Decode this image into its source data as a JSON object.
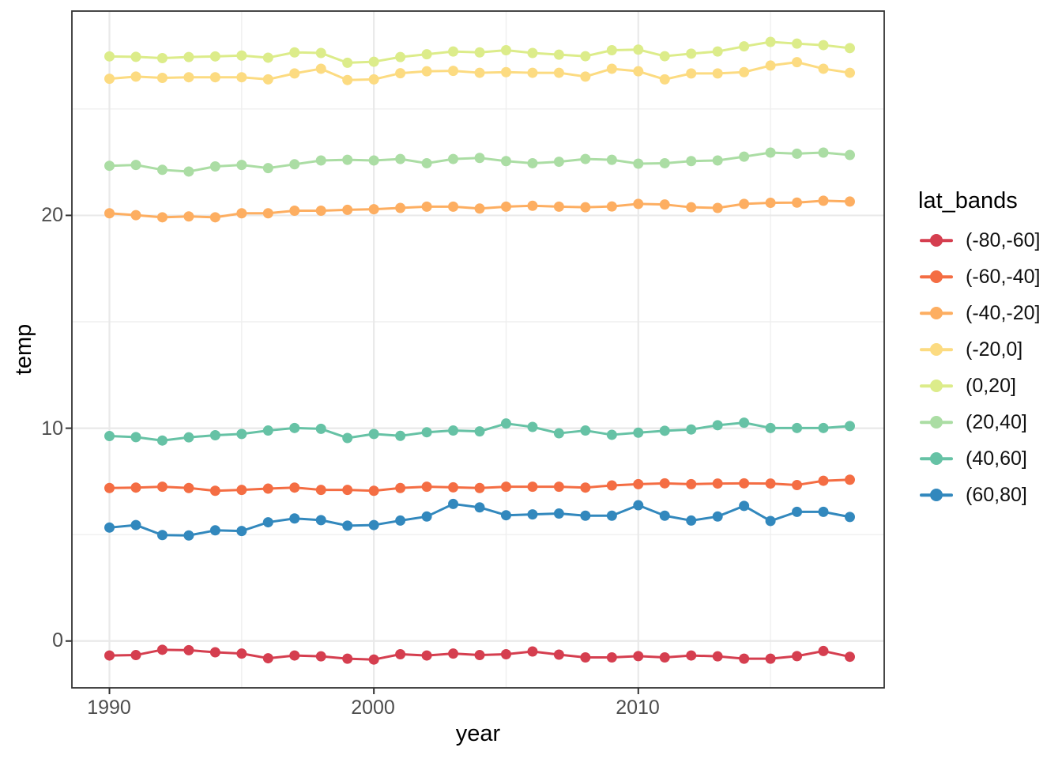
{
  "chart_data": {
    "type": "line",
    "title": "",
    "xlabel": "year",
    "ylabel": "temp",
    "legend_title": "lat_bands",
    "legend_position": "right",
    "grid": true,
    "marker": "circle",
    "xlim": [
      1988.58,
      2019.3
    ],
    "ylim": [
      -2.2,
      29.6
    ],
    "x_ticks": [
      1990,
      2000,
      2010
    ],
    "x_tick_labels": [
      "1990",
      "2000",
      "2010"
    ],
    "x_minor_ticks": [
      1995,
      2005,
      2015
    ],
    "y_ticks": [
      0,
      10,
      20
    ],
    "y_tick_labels": [
      "0",
      "10",
      "20"
    ],
    "y_minor_ticks": [
      5,
      15,
      25
    ],
    "x": [
      1990,
      1991,
      1992,
      1993,
      1994,
      1995,
      1996,
      1997,
      1998,
      1999,
      2000,
      2001,
      2002,
      2003,
      2004,
      2005,
      2006,
      2007,
      2008,
      2009,
      2010,
      2011,
      2012,
      2013,
      2014,
      2015,
      2016,
      2017,
      2018
    ],
    "series": [
      {
        "name": "(-80,-60]",
        "color": "#d53e4f",
        "values": [
          -0.68,
          -0.66,
          -0.41,
          -0.43,
          -0.53,
          -0.59,
          -0.81,
          -0.68,
          -0.72,
          -0.83,
          -0.87,
          -0.62,
          -0.68,
          -0.59,
          -0.66,
          -0.62,
          -0.49,
          -0.64,
          -0.77,
          -0.77,
          -0.71,
          -0.77,
          -0.68,
          -0.72,
          -0.83,
          -0.83,
          -0.71,
          -0.47,
          -0.74
        ]
      },
      {
        "name": "(-60,-40]",
        "color": "#f46d43",
        "values": [
          7.19,
          7.21,
          7.25,
          7.19,
          7.06,
          7.1,
          7.16,
          7.21,
          7.1,
          7.1,
          7.06,
          7.19,
          7.25,
          7.22,
          7.19,
          7.25,
          7.25,
          7.25,
          7.21,
          7.31,
          7.37,
          7.41,
          7.37,
          7.4,
          7.41,
          7.4,
          7.33,
          7.53,
          7.58
        ]
      },
      {
        "name": "(-40,-20]",
        "color": "#fdae61",
        "values": [
          20.1,
          20.01,
          19.91,
          19.95,
          19.91,
          20.1,
          20.1,
          20.22,
          20.22,
          20.26,
          20.29,
          20.35,
          20.41,
          20.41,
          20.32,
          20.41,
          20.45,
          20.41,
          20.38,
          20.42,
          20.54,
          20.51,
          20.38,
          20.35,
          20.54,
          20.59,
          20.6,
          20.69,
          20.65
        ]
      },
      {
        "name": "(-20,0]",
        "color": "#fcdb81",
        "values": [
          26.42,
          26.52,
          26.46,
          26.49,
          26.49,
          26.49,
          26.39,
          26.67,
          26.89,
          26.36,
          26.39,
          26.68,
          26.77,
          26.79,
          26.7,
          26.73,
          26.7,
          26.7,
          26.52,
          26.89,
          26.77,
          26.39,
          26.67,
          26.67,
          26.73,
          27.04,
          27.2,
          26.89,
          26.7
        ]
      },
      {
        "name": "(0,20]",
        "color": "#dcec8a",
        "values": [
          27.47,
          27.45,
          27.39,
          27.44,
          27.47,
          27.51,
          27.41,
          27.66,
          27.63,
          27.17,
          27.22,
          27.44,
          27.57,
          27.7,
          27.66,
          27.76,
          27.63,
          27.55,
          27.48,
          27.76,
          27.79,
          27.48,
          27.6,
          27.7,
          27.94,
          28.15,
          28.07,
          28.0,
          27.86
        ]
      },
      {
        "name": "(20,40]",
        "color": "#abdda4",
        "values": [
          22.33,
          22.37,
          22.14,
          22.06,
          22.3,
          22.37,
          22.22,
          22.4,
          22.58,
          22.61,
          22.58,
          22.65,
          22.45,
          22.65,
          22.7,
          22.55,
          22.45,
          22.52,
          22.65,
          22.61,
          22.43,
          22.45,
          22.55,
          22.58,
          22.76,
          22.95,
          22.9,
          22.95,
          22.84
        ]
      },
      {
        "name": "(40,60]",
        "color": "#66c2a5",
        "values": [
          9.63,
          9.58,
          9.42,
          9.57,
          9.67,
          9.73,
          9.89,
          10.01,
          9.97,
          9.54,
          9.73,
          9.64,
          9.81,
          9.89,
          9.85,
          10.22,
          10.06,
          9.76,
          9.89,
          9.69,
          9.79,
          9.88,
          9.94,
          10.14,
          10.26,
          10.01,
          10.01,
          10.01,
          10.1
        ]
      },
      {
        "name": "(60,80]",
        "color": "#3288bd",
        "values": [
          5.33,
          5.45,
          4.98,
          4.96,
          5.2,
          5.17,
          5.58,
          5.76,
          5.68,
          5.42,
          5.45,
          5.66,
          5.85,
          6.44,
          6.28,
          5.91,
          5.95,
          5.99,
          5.89,
          5.89,
          6.38,
          5.89,
          5.66,
          5.85,
          6.35,
          5.64,
          6.07,
          6.07,
          5.83
        ]
      }
    ],
    "style": {
      "panel_border_color": "#333333",
      "grid_major_color": "#e9e9e9",
      "grid_minor_color": "#efefef",
      "tick_color": "#333333",
      "tick_label_color": "#4d4d4d",
      "background": "#ffffff"
    }
  }
}
